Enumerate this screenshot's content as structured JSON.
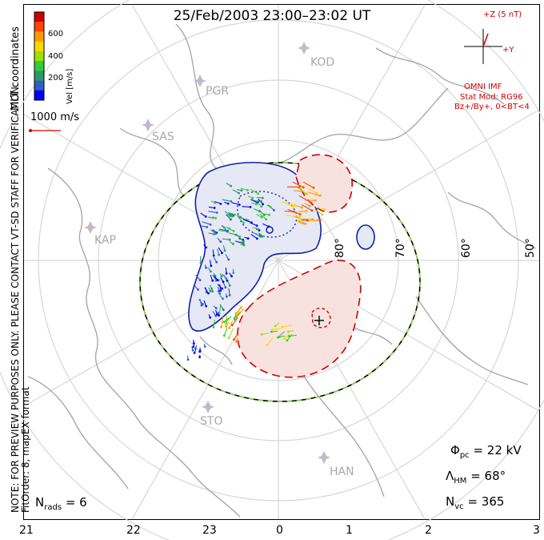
{
  "title": "25/Feb/2003 23:00–23:02 UT",
  "colorbar": {
    "label": "Vel [m/s]",
    "ticks": [
      "600",
      "400",
      "200"
    ],
    "colors": [
      "#cc0000",
      "#ff4500",
      "#ff9900",
      "#ffd700",
      "#a0e000",
      "#33cc33",
      "#2a9a6a",
      "#3060c0",
      "#0000ff"
    ]
  },
  "side_text": {
    "coords": "MLT coordinates",
    "note": "NOTE: FOR PREVIEW PURPOSES ONLY. PLEASE CONTACT VT-SD STAFF FOR VERIFICATION.",
    "fit": "FitOrder: 8, mapEX format"
  },
  "scale_label": "1000 m/s",
  "imf": {
    "bz": "+Z (5 nT)",
    "by": "+Y",
    "source": "OMNI IMF",
    "model": "Stat Mod: RG96",
    "condition": "Bz+/By+, 0<BT<4"
  },
  "sites": [
    "KOD",
    "PGR",
    "SAS",
    "KAP",
    "STO",
    "HAN"
  ],
  "latitudes": [
    "80°",
    "70°",
    "60°",
    "50°"
  ],
  "mlt_labels": [
    "21",
    "22",
    "23",
    "0",
    "1",
    "2",
    "3"
  ],
  "stats": {
    "n_rads_label": "N",
    "n_rads_sub": "rads",
    "n_rads_value": "= 6",
    "phi_label": "Φ",
    "phi_sub": "pc",
    "phi_value": "= 22 kV",
    "lambda_label": "Λ",
    "lambda_sub": "HM",
    "lambda_value": "= 68°",
    "nvc_label": "N",
    "nvc_sub": "vc",
    "nvc_value": "= 365"
  },
  "colors": {
    "negative_cell": "#1020b0",
    "positive_cell": "#d00000",
    "negative_fill": "#e6e8f5",
    "positive_fill": "#f8e2df",
    "grid": "#d0d0d0",
    "coast": "#a8a8a8",
    "hm_boundary_a": "#000000",
    "hm_boundary_b": "#88dd44"
  }
}
